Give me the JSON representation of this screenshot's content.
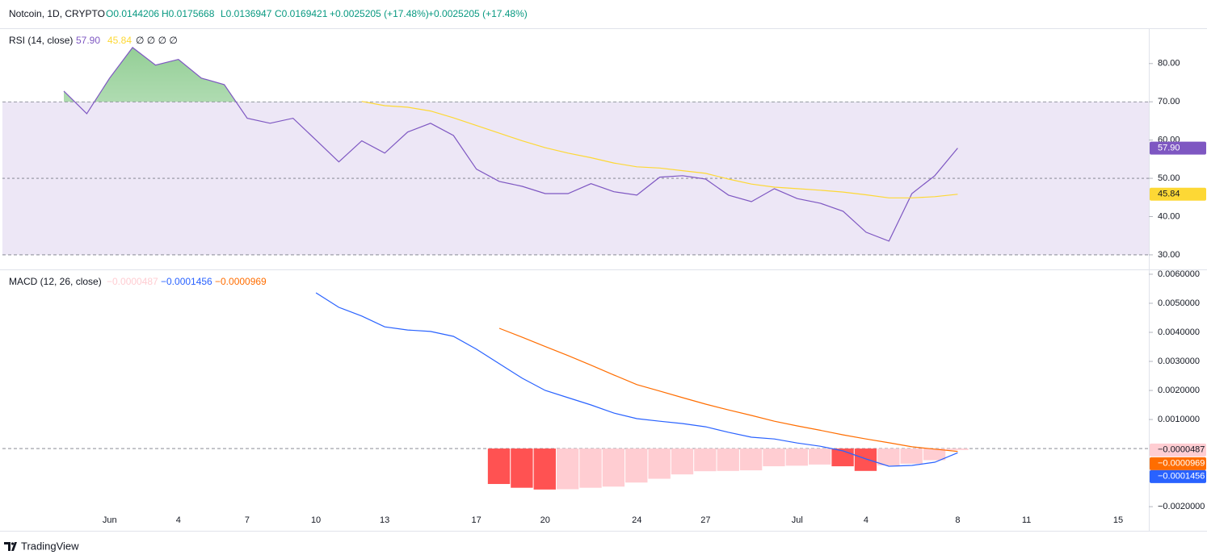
{
  "header": {
    "symbol": "Notcoin, 1D, CRYPTO",
    "open": "O0.0144206",
    "high": "H0.0175668",
    "low": "L0.0136947",
    "close": "C0.0169421",
    "change": "+0.0025205 (+17.48%)",
    "change2": "+0.0025205 (+17.48%)",
    "color": "#089981"
  },
  "footer": "TradingView",
  "chart_data": [
    {
      "type": "line",
      "title": "RSI (14, close)",
      "legend_placeholders": "∅ ∅ ∅ ∅",
      "ylim": [
        26.4,
        88.6
      ],
      "yticks": [
        {
          "value": 30,
          "label": "30.00"
        },
        {
          "value": 40,
          "label": "40.00"
        },
        {
          "value": 50,
          "label": "50.00"
        },
        {
          "value": 60,
          "label": "60.00"
        },
        {
          "value": 70,
          "label": "70.00"
        },
        {
          "value": 80,
          "label": "80.00"
        }
      ],
      "bands": {
        "upper": 70,
        "middle": 50,
        "lower": 30,
        "fill": "#ede7f6",
        "overbought_fill": "#4caf50"
      },
      "series": [
        {
          "color": "#7e57c2",
          "last_label": "57.90",
          "values": [
            72.8,
            66.9,
            76.2,
            84.2,
            79.6,
            81.1,
            76.2,
            74.5,
            65.7,
            64.4,
            65.7,
            60,
            54.3,
            59.8,
            56.6,
            62.1,
            64.4,
            61.2,
            52.4,
            49.2,
            47.9,
            46,
            46,
            48.6,
            46.5,
            45.6,
            50.3,
            50.7,
            49.8,
            45.6,
            43.9,
            47.3,
            44.7,
            43.5,
            41.4,
            35.9,
            33.6,
            46,
            50.7,
            57.9,
            null,
            null,
            null,
            null,
            null,
            null,
            null
          ]
        },
        {
          "color": "#fdd835",
          "last_label": "45.84",
          "values": [
            null,
            null,
            null,
            null,
            null,
            null,
            null,
            null,
            null,
            null,
            null,
            null,
            null,
            70.1,
            69.0,
            68.6,
            67.6,
            65.8,
            63.8,
            61.8,
            59.8,
            58.0,
            56.6,
            55.4,
            54.0,
            53.0,
            52.7,
            52.0,
            51.3,
            49.8,
            48.5,
            47.7,
            47.3,
            46.9,
            46.4,
            45.7,
            44.9,
            44.9,
            45.2,
            45.84,
            null,
            null,
            null,
            null,
            null,
            null,
            null
          ]
        }
      ]
    },
    {
      "type": "macd",
      "title": "MACD (12, 26, close)",
      "categories": [
        null,
        null,
        "Jun",
        null,
        null,
        "4",
        null,
        null,
        "7",
        null,
        null,
        "10",
        null,
        null,
        "13",
        null,
        null,
        null,
        "17",
        null,
        null,
        "20",
        null,
        null,
        null,
        "24",
        null,
        null,
        "27",
        null,
        null,
        null,
        "Jul",
        null,
        null,
        "4",
        null,
        null,
        null,
        "8",
        null,
        null,
        "11",
        null,
        null,
        null,
        "15"
      ],
      "ylim": [
        -0.00233,
        0.00611
      ],
      "yticks": [
        {
          "value": -0.002,
          "label": "−0.0020000"
        },
        {
          "value": 0.001,
          "label": "0.0010000"
        },
        {
          "value": 0.002,
          "label": "0.0020000"
        },
        {
          "value": 0.003,
          "label": "0.0030000"
        },
        {
          "value": 0.004,
          "label": "0.0040000"
        },
        {
          "value": 0.005,
          "label": "0.0050000"
        },
        {
          "value": 0.006,
          "label": "0.0060000"
        }
      ],
      "zero_line": 0,
      "histogram": {
        "falling_color": "#ff5252",
        "rising_color": "#ffcdd2",
        "last_label": "−0.0000487",
        "values": [
          null,
          null,
          null,
          null,
          null,
          null,
          null,
          null,
          null,
          null,
          null,
          null,
          null,
          null,
          null,
          null,
          null,
          null,
          null,
          -0.00122,
          -0.00135,
          -0.00141,
          -0.0014,
          -0.00135,
          -0.00131,
          -0.00117,
          -0.00104,
          -0.00089,
          -0.00078,
          -0.00077,
          -0.00075,
          -0.00061,
          -0.00059,
          -0.00055,
          -0.00061,
          -0.00077,
          -0.00058,
          -0.00052,
          -0.0004,
          -4.87e-05,
          null,
          null,
          null,
          null,
          null,
          null,
          null
        ]
      },
      "series": [
        {
          "color": "#2962ff",
          "last_label": "−0.0001456",
          "values": [
            null,
            null,
            null,
            null,
            null,
            null,
            null,
            null,
            null,
            null,
            null,
            0.00536,
            0.00486,
            0.00456,
            0.00419,
            0.00408,
            0.00403,
            0.00386,
            0.00342,
            0.00292,
            0.00242,
            0.002,
            0.00175,
            0.0015,
            0.00122,
            0.00103,
            0.00094,
            0.00086,
            0.00075,
            0.00056,
            0.00039,
            0.00033,
            0.00019,
            8e-05,
            -8e-05,
            -0.00036,
            -0.00061,
            -0.00058,
            -0.00047,
            -0.0001456,
            null,
            null,
            null,
            null,
            null,
            null,
            null
          ]
        },
        {
          "color": "#ff6d00",
          "last_label": "−0.0000969",
          "values": [
            null,
            null,
            null,
            null,
            null,
            null,
            null,
            null,
            null,
            null,
            null,
            null,
            null,
            null,
            null,
            null,
            null,
            null,
            null,
            0.00414,
            0.00383,
            0.00351,
            0.0032,
            0.00287,
            0.00253,
            0.0022,
            0.00198,
            0.00175,
            0.00153,
            0.00133,
            0.00114,
            0.00094,
            0.00078,
            0.00063,
            0.00047,
            0.00033,
            0.0002,
            6e-05,
            -2e-05,
            -9.69e-05,
            null,
            null,
            null,
            null,
            null,
            null,
            null
          ]
        }
      ]
    }
  ]
}
